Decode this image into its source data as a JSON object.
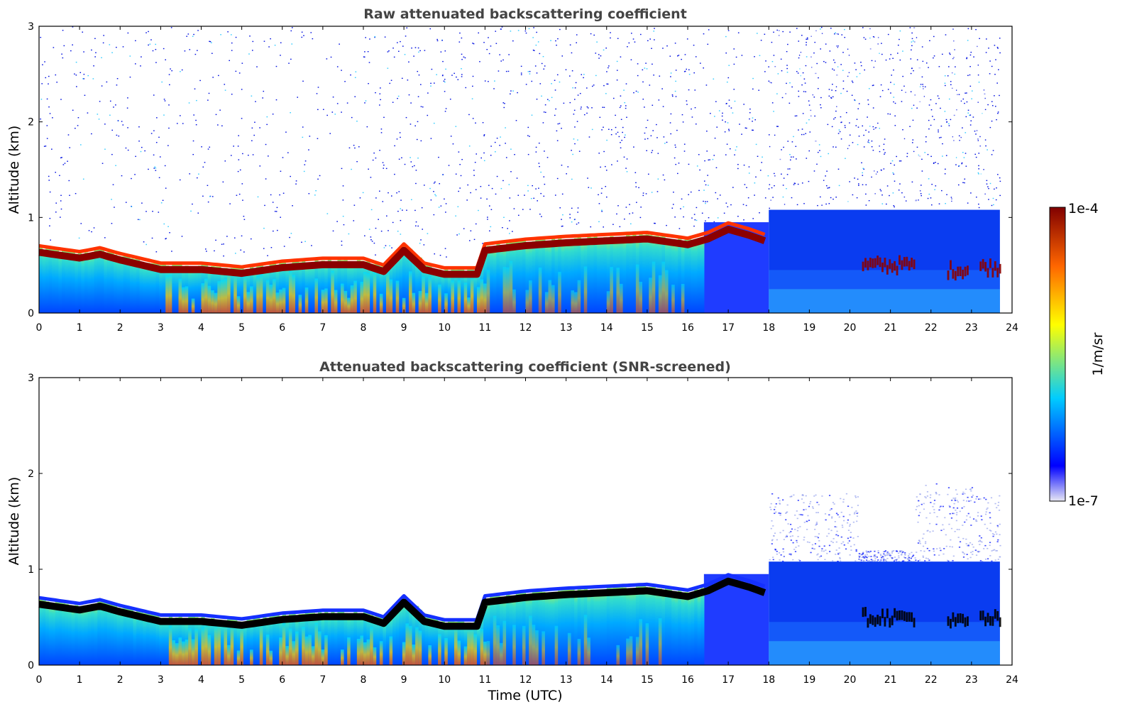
{
  "chart_data": [
    {
      "type": "heatmap",
      "title": "Raw attenuated backscattering coefficient",
      "xlabel": "",
      "ylabel": "Altitude (km)",
      "xlim": [
        0,
        24
      ],
      "ylim": [
        0,
        3
      ],
      "x_ticks": [
        "0",
        "1",
        "2",
        "3",
        "4",
        "5",
        "6",
        "7",
        "8",
        "9",
        "10",
        "11",
        "12",
        "13",
        "14",
        "15",
        "16",
        "17",
        "18",
        "19",
        "20",
        "21",
        "22",
        "23",
        "24"
      ],
      "y_ticks": [
        "0",
        "1",
        "2",
        "3"
      ],
      "data_end_time": 23.7,
      "noise_level": "high",
      "layer_top_km": [
        {
          "t": 0,
          "z": 0.68
        },
        {
          "t": 1,
          "z": 0.62
        },
        {
          "t": 1.5,
          "z": 0.66
        },
        {
          "t": 2,
          "z": 0.6
        },
        {
          "t": 3,
          "z": 0.5
        },
        {
          "t": 4,
          "z": 0.5
        },
        {
          "t": 5,
          "z": 0.46
        },
        {
          "t": 6,
          "z": 0.52
        },
        {
          "t": 7,
          "z": 0.55
        },
        {
          "t": 8,
          "z": 0.55
        },
        {
          "t": 8.5,
          "z": 0.48
        },
        {
          "t": 9,
          "z": 0.7
        },
        {
          "t": 9.5,
          "z": 0.5
        },
        {
          "t": 10,
          "z": 0.45
        },
        {
          "t": 10.8,
          "z": 0.45
        },
        {
          "t": 11,
          "z": 0.7
        },
        {
          "t": 12,
          "z": 0.75
        },
        {
          "t": 13,
          "z": 0.78
        },
        {
          "t": 14,
          "z": 0.8
        },
        {
          "t": 15,
          "z": 0.82
        },
        {
          "t": 16,
          "z": 0.76
        },
        {
          "t": 16.5,
          "z": 0.82
        },
        {
          "t": 17,
          "z": 0.92
        },
        {
          "t": 17.5,
          "z": 0.86
        },
        {
          "t": 17.9,
          "z": 0.8
        }
      ]
    },
    {
      "type": "heatmap",
      "title": "Attenuated backscattering coefficient (SNR-screened)",
      "xlabel": "Time (UTC)",
      "ylabel": "Altitude (km)",
      "xlim": [
        0,
        24
      ],
      "ylim": [
        0,
        3
      ],
      "x_ticks": [
        "0",
        "1",
        "2",
        "3",
        "4",
        "5",
        "6",
        "7",
        "8",
        "9",
        "10",
        "11",
        "12",
        "13",
        "14",
        "15",
        "16",
        "17",
        "18",
        "19",
        "20",
        "21",
        "22",
        "23",
        "24"
      ],
      "y_ticks": [
        "0",
        "1",
        "2",
        "3"
      ],
      "data_end_time": 23.7,
      "noise_level": "screened",
      "layer_top_km": [
        {
          "t": 0,
          "z": 0.68
        },
        {
          "t": 1,
          "z": 0.62
        },
        {
          "t": 1.5,
          "z": 0.66
        },
        {
          "t": 2,
          "z": 0.6
        },
        {
          "t": 3,
          "z": 0.5
        },
        {
          "t": 4,
          "z": 0.5
        },
        {
          "t": 5,
          "z": 0.46
        },
        {
          "t": 6,
          "z": 0.52
        },
        {
          "t": 7,
          "z": 0.55
        },
        {
          "t": 8,
          "z": 0.55
        },
        {
          "t": 8.5,
          "z": 0.48
        },
        {
          "t": 9,
          "z": 0.7
        },
        {
          "t": 9.5,
          "z": 0.5
        },
        {
          "t": 10,
          "z": 0.45
        },
        {
          "t": 10.8,
          "z": 0.45
        },
        {
          "t": 11,
          "z": 0.7
        },
        {
          "t": 12,
          "z": 0.75
        },
        {
          "t": 13,
          "z": 0.78
        },
        {
          "t": 14,
          "z": 0.8
        },
        {
          "t": 15,
          "z": 0.82
        },
        {
          "t": 16,
          "z": 0.76
        },
        {
          "t": 16.5,
          "z": 0.82
        },
        {
          "t": 17,
          "z": 0.92
        },
        {
          "t": 17.5,
          "z": 0.86
        },
        {
          "t": 17.9,
          "z": 0.8
        }
      ]
    }
  ],
  "colorbar": {
    "label": "1/m/sr",
    "max_label": "1e-4",
    "min_label": "1e-7",
    "scale": "log",
    "colormap": [
      "#e8e8f4",
      "#0000ff",
      "#00ccff",
      "#ffff00",
      "#ff6600",
      "#800000"
    ]
  }
}
